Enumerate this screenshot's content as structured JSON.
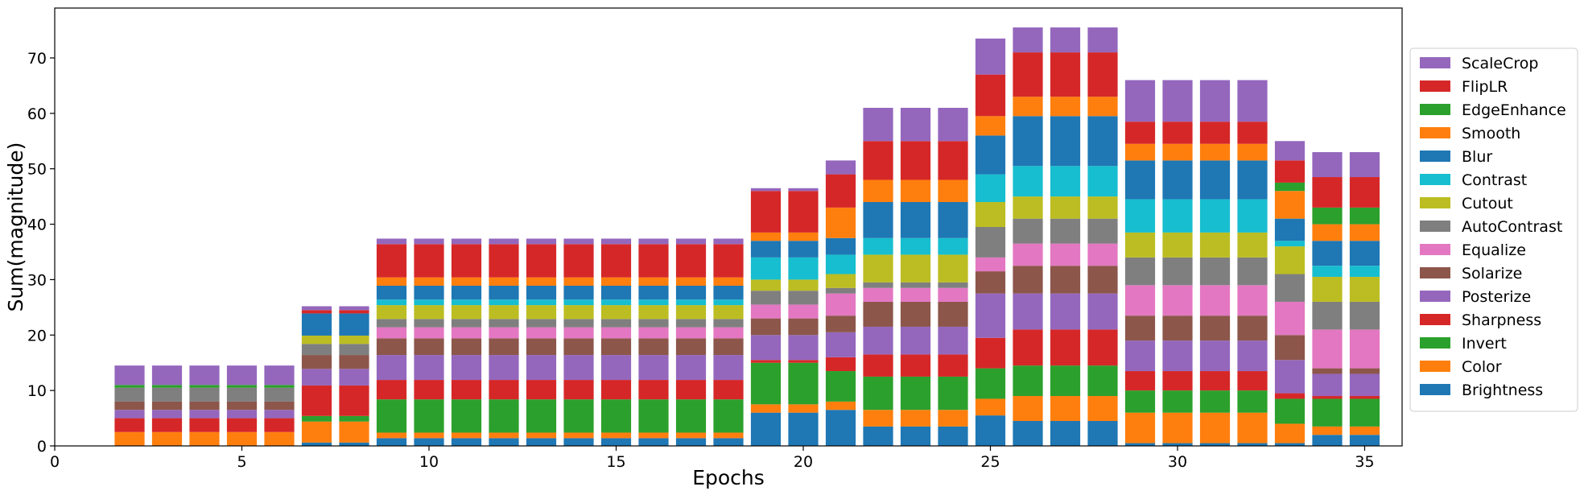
{
  "chart_data": {
    "type": "bar",
    "stacked": true,
    "xlabel": "Epochs",
    "ylabel": "Sum(magnitude)",
    "xlim": [
      0,
      36
    ],
    "ylim": [
      0,
      79
    ],
    "xticks": [
      0,
      5,
      10,
      15,
      20,
      25,
      30,
      35
    ],
    "yticks": [
      0,
      10,
      20,
      30,
      40,
      50,
      60,
      70
    ],
    "grid": false,
    "legend_position": "right",
    "x": [
      2,
      3,
      4,
      5,
      6,
      7,
      8,
      9,
      10,
      11,
      12,
      13,
      14,
      15,
      16,
      17,
      18,
      19,
      20,
      21,
      22,
      23,
      24,
      25,
      26,
      27,
      28,
      29,
      30,
      31,
      32,
      33,
      34,
      35
    ],
    "series": [
      {
        "name": "Brightness",
        "color": "#1f77b4",
        "values": [
          0,
          0,
          0,
          0,
          0,
          0.6,
          0.6,
          1.4,
          1.4,
          1.4,
          1.4,
          1.4,
          1.4,
          1.4,
          1.4,
          1.4,
          1.4,
          6.0,
          6.0,
          6.5,
          3.5,
          3.5,
          3.5,
          5.5,
          4.5,
          4.5,
          4.5,
          0.5,
          0.5,
          0.5,
          0.5,
          0.5,
          2.0,
          2.0
        ]
      },
      {
        "name": "Color",
        "color": "#ff7f0e",
        "values": [
          2.5,
          2.5,
          2.5,
          2.5,
          2.5,
          3.8,
          3.8,
          1.0,
          1.0,
          1.0,
          1.0,
          1.0,
          1.0,
          1.0,
          1.0,
          1.0,
          1.0,
          1.5,
          1.5,
          1.5,
          3.0,
          3.0,
          3.0,
          3.0,
          4.5,
          4.5,
          4.5,
          5.5,
          5.5,
          5.5,
          5.5,
          3.5,
          1.5,
          1.5
        ]
      },
      {
        "name": "Invert",
        "color": "#2ca02c",
        "values": [
          0,
          0,
          0,
          0,
          0,
          1.0,
          1.0,
          6.0,
          6.0,
          6.0,
          6.0,
          6.0,
          6.0,
          6.0,
          6.0,
          6.0,
          6.0,
          7.5,
          7.5,
          5.5,
          6.0,
          6.0,
          6.0,
          5.5,
          5.5,
          5.5,
          5.5,
          4.0,
          4.0,
          4.0,
          4.0,
          4.5,
          5.0,
          5.0
        ]
      },
      {
        "name": "Sharpness",
        "color": "#d62728",
        "values": [
          2.5,
          2.5,
          2.5,
          2.5,
          2.5,
          5.5,
          5.5,
          3.5,
          3.5,
          3.5,
          3.5,
          3.5,
          3.5,
          3.5,
          3.5,
          3.5,
          3.5,
          0.5,
          0.5,
          2.5,
          4.0,
          4.0,
          4.0,
          5.5,
          6.5,
          6.5,
          6.5,
          3.5,
          3.5,
          3.5,
          3.5,
          1.0,
          0.5,
          0.5
        ]
      },
      {
        "name": "Posterize",
        "color": "#9467bd",
        "values": [
          1.5,
          1.5,
          1.5,
          1.5,
          1.5,
          3.0,
          3.0,
          4.5,
          4.5,
          4.5,
          4.5,
          4.5,
          4.5,
          4.5,
          4.5,
          4.5,
          4.5,
          4.5,
          4.5,
          4.5,
          5.0,
          5.0,
          5.0,
          8.0,
          6.5,
          6.5,
          6.5,
          5.5,
          5.5,
          5.5,
          5.5,
          6.0,
          4.0,
          4.0
        ]
      },
      {
        "name": "Solarize",
        "color": "#8c564b",
        "values": [
          1.5,
          1.5,
          1.5,
          1.5,
          1.5,
          2.5,
          2.5,
          3.0,
          3.0,
          3.0,
          3.0,
          3.0,
          3.0,
          3.0,
          3.0,
          3.0,
          3.0,
          3.0,
          3.0,
          3.0,
          4.5,
          4.5,
          4.5,
          4.0,
          5.0,
          5.0,
          5.0,
          4.5,
          4.5,
          4.5,
          4.5,
          4.5,
          1.0,
          1.0
        ]
      },
      {
        "name": "Equalize",
        "color": "#e377c2",
        "values": [
          0,
          0,
          0,
          0,
          0,
          0,
          0,
          2.0,
          2.0,
          2.0,
          2.0,
          2.0,
          2.0,
          2.0,
          2.0,
          2.0,
          2.0,
          2.5,
          2.5,
          4.0,
          2.5,
          2.5,
          2.5,
          2.5,
          4.0,
          4.0,
          4.0,
          5.5,
          5.5,
          5.5,
          5.5,
          6.0,
          7.0,
          7.0
        ]
      },
      {
        "name": "AutoContrast",
        "color": "#7f7f7f",
        "values": [
          2.5,
          2.5,
          2.5,
          2.5,
          2.5,
          2.0,
          2.0,
          1.5,
          1.5,
          1.5,
          1.5,
          1.5,
          1.5,
          1.5,
          1.5,
          1.5,
          1.5,
          2.5,
          2.5,
          1.0,
          1.0,
          1.0,
          1.0,
          5.5,
          4.5,
          4.5,
          4.5,
          5.0,
          5.0,
          5.0,
          5.0,
          5.0,
          5.0,
          5.0
        ]
      },
      {
        "name": "Cutout",
        "color": "#bcbd22",
        "values": [
          0,
          0,
          0,
          0,
          0,
          1.5,
          1.5,
          2.5,
          2.5,
          2.5,
          2.5,
          2.5,
          2.5,
          2.5,
          2.5,
          2.5,
          2.5,
          2.0,
          2.0,
          2.5,
          5.0,
          5.0,
          5.0,
          4.5,
          4.0,
          4.0,
          4.0,
          4.5,
          4.5,
          4.5,
          4.5,
          5.0,
          4.5,
          4.5
        ]
      },
      {
        "name": "Contrast",
        "color": "#17becf",
        "values": [
          0,
          0,
          0,
          0,
          0,
          0,
          0,
          1.0,
          1.0,
          1.0,
          1.0,
          1.0,
          1.0,
          1.0,
          1.0,
          1.0,
          1.0,
          4.0,
          4.0,
          3.5,
          3.0,
          3.0,
          3.0,
          5.0,
          5.5,
          5.5,
          5.5,
          6.0,
          6.0,
          6.0,
          6.0,
          1.0,
          2.0,
          2.0
        ]
      },
      {
        "name": "Blur",
        "color": "#1f77b4",
        "values": [
          0,
          0,
          0,
          0,
          0,
          4.0,
          4.0,
          2.5,
          2.5,
          2.5,
          2.5,
          2.5,
          2.5,
          2.5,
          2.5,
          2.5,
          2.5,
          3.0,
          3.0,
          3.0,
          6.5,
          6.5,
          6.5,
          7.0,
          9.0,
          9.0,
          9.0,
          7.0,
          7.0,
          7.0,
          7.0,
          4.0,
          4.5,
          4.5
        ]
      },
      {
        "name": "Smooth",
        "color": "#ff7f0e",
        "values": [
          0,
          0,
          0,
          0,
          0,
          0,
          0,
          1.5,
          1.5,
          1.5,
          1.5,
          1.5,
          1.5,
          1.5,
          1.5,
          1.5,
          1.5,
          1.5,
          1.5,
          5.5,
          4.0,
          4.0,
          4.0,
          3.5,
          3.5,
          3.5,
          3.5,
          3.0,
          3.0,
          3.0,
          3.0,
          5.0,
          3.0,
          3.0
        ]
      },
      {
        "name": "EdgeEnhance",
        "color": "#2ca02c",
        "values": [
          0.5,
          0.5,
          0.5,
          0.5,
          0.5,
          0,
          0,
          0,
          0,
          0,
          0,
          0,
          0,
          0,
          0,
          0,
          0,
          0,
          0,
          0,
          0,
          0,
          0,
          0,
          0,
          0,
          0,
          0,
          0,
          0,
          0,
          1.5,
          3.0,
          3.0
        ]
      },
      {
        "name": "FlipLR",
        "color": "#d62728",
        "values": [
          0,
          0,
          0,
          0,
          0,
          0.6,
          0.6,
          6.0,
          6.0,
          6.0,
          6.0,
          6.0,
          6.0,
          6.0,
          6.0,
          6.0,
          6.0,
          7.5,
          7.5,
          6.0,
          7.0,
          7.0,
          7.0,
          7.5,
          8.0,
          8.0,
          8.0,
          4.0,
          4.0,
          4.0,
          4.0,
          4.0,
          5.5,
          5.5
        ]
      },
      {
        "name": "ScaleCrop",
        "color": "#9467bd",
        "values": [
          3.5,
          3.5,
          3.5,
          3.5,
          3.5,
          0.7,
          0.7,
          1.0,
          1.0,
          1.0,
          1.0,
          1.0,
          1.0,
          1.0,
          1.0,
          1.0,
          1.0,
          0.5,
          0.5,
          2.5,
          6.0,
          6.0,
          6.0,
          6.5,
          4.5,
          4.5,
          4.5,
          7.5,
          7.5,
          7.5,
          7.5,
          3.5,
          4.5,
          4.5
        ]
      }
    ]
  }
}
